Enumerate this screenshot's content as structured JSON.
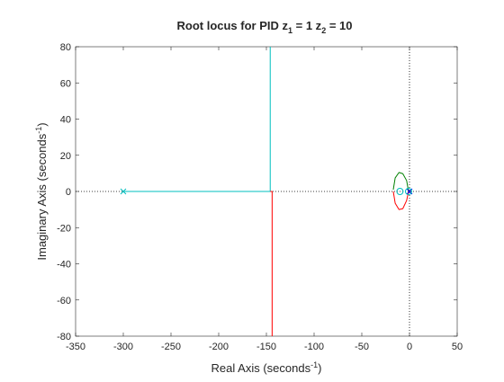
{
  "chart_data": {
    "type": "line",
    "title": {
      "prefix": "Root locus for PID z",
      "sub1": "1",
      "mid": " = 1 z",
      "sub2": "2",
      "suffix": " = 10"
    },
    "xlabel": {
      "base": "Real Axis (seconds",
      "sup": "-1",
      "suffix": ")"
    },
    "ylabel": {
      "base": "Imaginary Axis (seconds",
      "sup": "-1",
      "suffix": ")"
    },
    "xlim": [
      -350,
      50
    ],
    "ylim": [
      -80,
      80
    ],
    "xticks": [
      -350,
      -300,
      -250,
      -200,
      -150,
      -100,
      -50,
      0,
      50
    ],
    "yticks": [
      -80,
      -60,
      -40,
      -20,
      0,
      20,
      40,
      60,
      80
    ],
    "grid": false,
    "reference_lines": [
      {
        "orientation": "horizontal",
        "value": 0,
        "style": "dotted"
      },
      {
        "orientation": "vertical",
        "value": 0,
        "style": "dotted"
      }
    ],
    "series": [
      {
        "color": "#00bfbf",
        "points": [
          [
            -300,
            0
          ],
          [
            -146,
            0
          ],
          [
            -146,
            80
          ]
        ]
      },
      {
        "color": "#ff0000",
        "points": [
          [
            -146,
            0
          ],
          [
            -144,
            0
          ],
          [
            -144,
            -80
          ]
        ]
      },
      {
        "color": "#ff0000",
        "points": [
          [
            -1,
            0
          ],
          [
            -3,
            -5
          ],
          [
            -7,
            -9.5
          ],
          [
            -11,
            -10
          ],
          [
            -15,
            -6.5
          ],
          [
            -17,
            0
          ]
        ]
      },
      {
        "color": "#008000",
        "points": [
          [
            -1,
            0
          ],
          [
            -3,
            6
          ],
          [
            -7,
            9.8
          ],
          [
            -11,
            10.5
          ],
          [
            -15,
            7.5
          ],
          [
            -17,
            1
          ]
        ]
      },
      {
        "color": "#0000ff",
        "points": [
          [
            0,
            0
          ],
          [
            -1,
            0
          ]
        ]
      }
    ],
    "poles": [
      {
        "x": -300,
        "y": 0,
        "color": "#00bfbf"
      },
      {
        "x": 0,
        "y": 0,
        "color": "#0000ff"
      }
    ],
    "zeros": [
      {
        "x": -10,
        "y": 0,
        "color": "#00bfbf"
      },
      {
        "x": -1,
        "y": 0,
        "color": "#00bfbf"
      }
    ],
    "colors": {
      "axes": "#262626",
      "reference": "#000000"
    }
  }
}
